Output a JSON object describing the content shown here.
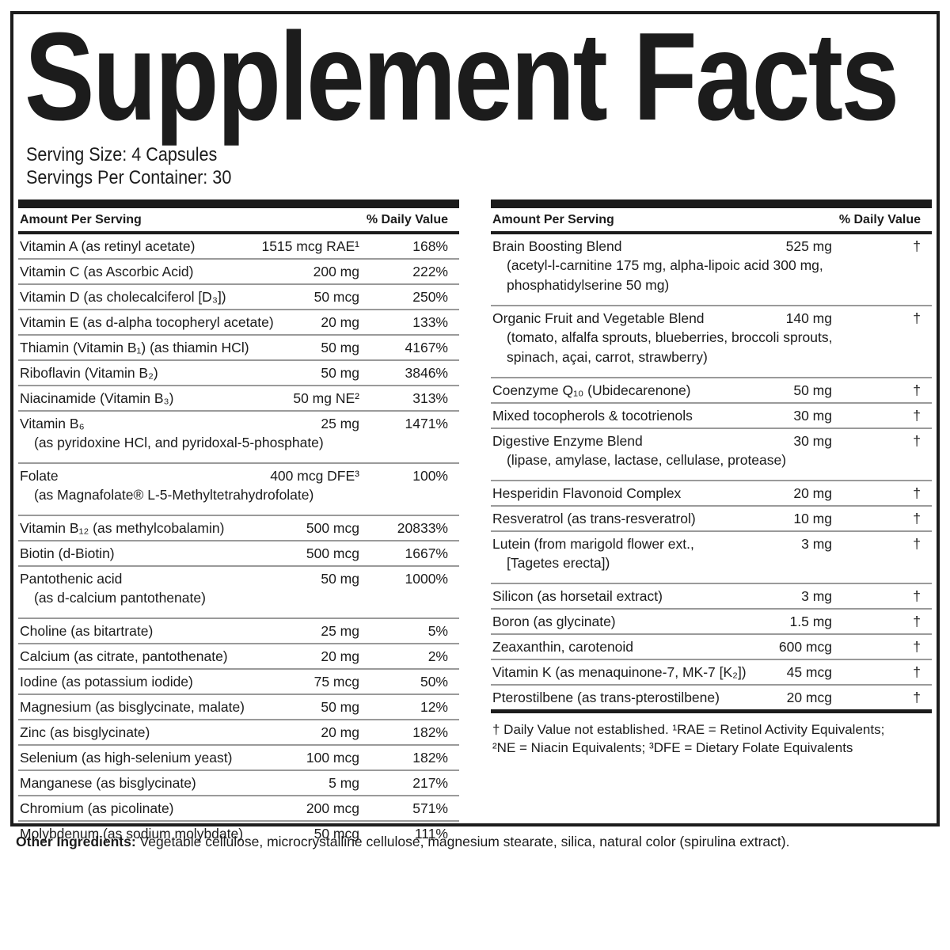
{
  "title": "Supplement Facts",
  "serving": {
    "size_line": "Serving Size: 4 Capsules",
    "container_line": "Servings Per Container: 30"
  },
  "colors": {
    "text": "#1c1c1c",
    "rule_heavy": "#1c1c1c",
    "rule_light": "#9a9a9a",
    "background": "#ffffff"
  },
  "columns": {
    "left": {
      "header": {
        "amount_label": "Amount Per Serving",
        "dv_label": "% Daily Value"
      },
      "rows": [
        {
          "name": "Vitamin A (as retinyl acetate)",
          "amount": "1515 mcg RAE¹",
          "dv": "168%"
        },
        {
          "name": "Vitamin C (as Ascorbic Acid)",
          "amount": "200 mg",
          "dv": "222%"
        },
        {
          "name": "Vitamin D (as cholecalciferol [D₃])",
          "amount": "50 mcg",
          "dv": "250%"
        },
        {
          "name": "Vitamin E (as d-alpha tocopheryl acetate)",
          "amount": "20 mg",
          "dv": "133%"
        },
        {
          "name": "Thiamin (Vitamin B₁) (as thiamin HCl)",
          "amount": "50 mg",
          "dv": "4167%"
        },
        {
          "name": "Riboflavin (Vitamin B₂)",
          "amount": "50 mg",
          "dv": "3846%"
        },
        {
          "name": "Niacinamide (Vitamin B₃)",
          "amount": "50 mg NE²",
          "dv": "313%"
        },
        {
          "name": "Vitamin B₆",
          "sub_lines": [
            "(as pyridoxine HCl, and pyridoxal-5-phosphate)"
          ],
          "amount": "25 mg",
          "dv": "1471%"
        },
        {
          "name": "Folate",
          "sub_lines": [
            "(as Magnafolate® L-5-Methyltetrahydrofolate)"
          ],
          "amount": "400 mcg DFE³",
          "dv": "100%"
        },
        {
          "name": "Vitamin B₁₂ (as methylcobalamin)",
          "amount": "500 mcg",
          "dv": "20833%"
        },
        {
          "name": "Biotin (d-Biotin)",
          "amount": "500 mcg",
          "dv": "1667%"
        },
        {
          "name": "Pantothenic acid",
          "sub_lines": [
            "(as d-calcium pantothenate)"
          ],
          "amount": "50 mg",
          "dv": "1000%"
        },
        {
          "name": "Choline (as bitartrate)",
          "amount": "25 mg",
          "dv": "5%"
        },
        {
          "name": "Calcium (as citrate, pantothenate)",
          "amount": "20 mg",
          "dv": "2%"
        },
        {
          "name": "Iodine (as potassium iodide)",
          "amount": "75 mcg",
          "dv": "50%"
        },
        {
          "name": "Magnesium (as bisglycinate, malate)",
          "amount": "50 mg",
          "dv": "12%"
        },
        {
          "name": "Zinc (as bisglycinate)",
          "amount": "20 mg",
          "dv": "182%"
        },
        {
          "name": "Selenium (as high-selenium yeast)",
          "amount": "100 mcg",
          "dv": "182%"
        },
        {
          "name": "Manganese (as bisglycinate)",
          "amount": "5 mg",
          "dv": "217%"
        },
        {
          "name": "Chromium (as picolinate)",
          "amount": "200 mcg",
          "dv": "571%"
        },
        {
          "name": "Molybdenum (as sodium molybdate)",
          "amount": "50 mcg",
          "dv": "111%"
        }
      ]
    },
    "right": {
      "header": {
        "amount_label": "Amount Per Serving",
        "dv_label": "% Daily Value"
      },
      "rows": [
        {
          "name": "Brain Boosting Blend",
          "amount": "525 mg",
          "dv": "†",
          "sub_lines": [
            "(acetyl-l-carnitine 175 mg, alpha-lipoic acid 300 mg,",
            "phosphatidylserine 50 mg)"
          ]
        },
        {
          "name": "Organic Fruit and Vegetable Blend",
          "amount": "140 mg",
          "dv": "†",
          "sub_lines": [
            "(tomato, alfalfa sprouts, blueberries, broccoli sprouts,",
            "spinach, açai, carrot, strawberry)"
          ]
        },
        {
          "name": "Coenzyme Q₁₀ (Ubidecarenone)",
          "amount": "50 mg",
          "dv": "†"
        },
        {
          "name": "Mixed tocopherols & tocotrienols",
          "amount": "30 mg",
          "dv": "†"
        },
        {
          "name": "Digestive Enzyme Blend",
          "amount": "30 mg",
          "dv": "†",
          "sub_lines": [
            "(lipase, amylase, lactase, cellulase, protease)"
          ]
        },
        {
          "name": "Hesperidin Flavonoid Complex",
          "amount": "20 mg",
          "dv": "†"
        },
        {
          "name": "Resveratrol (as trans-resveratrol)",
          "amount": "10 mg",
          "dv": "†"
        },
        {
          "name": "Lutein (from marigold flower ext.,",
          "sub_lines": [
            "[Tagetes erecta])"
          ],
          "amount": "3 mg",
          "dv": "†"
        },
        {
          "name": "Silicon (as horsetail extract)",
          "amount": "3 mg",
          "dv": "†"
        },
        {
          "name": "Boron (as glycinate)",
          "amount": "1.5 mg",
          "dv": "†"
        },
        {
          "name": "Zeaxanthin, carotenoid",
          "amount": "600 mcg",
          "dv": "†"
        },
        {
          "name": "Vitamin K (as menaquinone-7, MK-7 [K₂])",
          "amount": "45 mcg",
          "dv": "†"
        },
        {
          "name": "Pterostilbene (as trans-pterostilbene)",
          "amount": "20 mcg",
          "dv": "†"
        }
      ],
      "footnote_lines": [
        "† Daily Value not established. ¹RAE = Retinol Activity Equivalents;",
        "²NE = Niacin Equivalents; ³DFE = Dietary Folate Equivalents"
      ]
    }
  },
  "other_ingredients": {
    "label": "Other Ingredients:",
    "text": " Vegetable cellulose, microcrystalline cellulose, magnesium stearate, silica, natural color (spirulina extract)."
  }
}
